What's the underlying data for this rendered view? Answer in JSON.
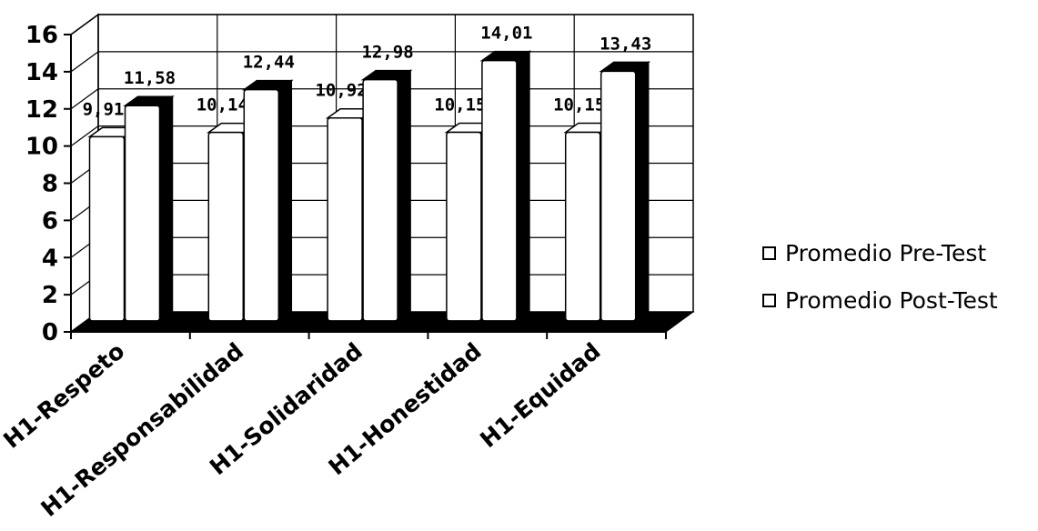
{
  "chart_data": {
    "type": "bar",
    "categories": [
      "H1-Respeto",
      "H1-Responsabilidad",
      "H1-Solidaridad",
      "H1-Honestidad",
      "H1-Equidad"
    ],
    "series": [
      {
        "name": "Promedio Pre-Test",
        "values": [
          9.91,
          10.14,
          10.92,
          10.15,
          10.15
        ],
        "labels": [
          "9,91",
          "10,14",
          "10,92",
          "10,15",
          "10,15"
        ]
      },
      {
        "name": "Promedio Post-Test",
        "values": [
          11.58,
          12.44,
          12.98,
          14.01,
          13.43
        ],
        "labels": [
          "11,58",
          "12,44",
          "12,98",
          "14,01",
          "13,43"
        ]
      }
    ],
    "yticks": [
      "0",
      "2",
      "4",
      "6",
      "8",
      "10",
      "12",
      "14",
      "16"
    ],
    "ylim": [
      0,
      16
    ],
    "grid": true,
    "legend_position": "right",
    "colors": {
      "bar_face": "#ffffff",
      "bar_side": "#000000",
      "grid": "#000000"
    }
  }
}
